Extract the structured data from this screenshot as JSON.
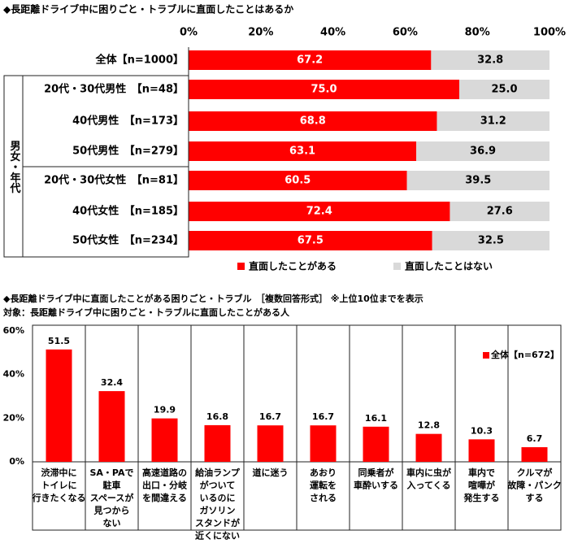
{
  "chart_data": [
    {
      "type": "bar",
      "orientation": "horizontal",
      "stacked": true,
      "title": "◆長距離ドライブ中に困りごと・トラブルに直面したことはあるか",
      "categories": [
        "全体【n=1000】",
        "20代・30代男性　【n=48】",
        "40代男性　【n=173】",
        "50代男性　【n=279】",
        "20代・30代女性　【n=81】",
        "40代女性　【n=185】",
        "50代女性　【n=234】"
      ],
      "group_label": "男女・年代",
      "series": [
        {
          "name": "直面したことがある",
          "color": "#ff0000",
          "values": [
            67.2,
            75.0,
            68.8,
            63.1,
            60.5,
            72.4,
            67.5
          ],
          "value_labels": [
            "67.2",
            "75.0",
            "68.8",
            "63.1",
            "60.5",
            "72.4",
            "67.5"
          ]
        },
        {
          "name": "直面したことはない",
          "color": "#d9d9d9",
          "values": [
            32.8,
            25.0,
            31.2,
            36.9,
            39.5,
            27.6,
            32.5
          ],
          "value_labels": [
            "32.8",
            "25.0",
            "31.2",
            "36.9",
            "39.5",
            "27.6",
            "32.5"
          ]
        }
      ],
      "xlim": [
        0,
        100
      ],
      "xticks": [
        {
          "value": 0,
          "label": "0%"
        },
        {
          "value": 20,
          "label": "20%"
        },
        {
          "value": 40,
          "label": "40%"
        },
        {
          "value": 60,
          "label": "60%"
        },
        {
          "value": 80,
          "label": "80%"
        },
        {
          "value": 100,
          "label": "100%"
        }
      ],
      "grid": false,
      "legend": "bottom"
    },
    {
      "type": "bar",
      "orientation": "vertical",
      "title": "◆長距離ドライブ中に直面したことがある困りごと・トラブル　［複数回答形式］ ※上位10位までを表示",
      "subtitle": "対象：長距離ドライブ中に困りごと・トラブルに直面したことがある人",
      "categories": [
        [
          "渋滞中に",
          "トイレに",
          "行きたくなる"
        ],
        [
          "SA・PAで",
          "駐車",
          "スペースが",
          "見つから",
          "ない"
        ],
        [
          "高速道路の",
          "出口・分岐",
          "を間違える"
        ],
        [
          "給油ランプ",
          "がついて",
          "いるのに",
          "ガソリン",
          "スタンドが",
          "近くにない"
        ],
        [
          "道に迷う"
        ],
        [
          "あおり",
          "運転を",
          "される"
        ],
        [
          "同乗者が",
          "車酔いする"
        ],
        [
          "車内に虫が",
          "入ってくる"
        ],
        [
          "車内で",
          "喧嘩が",
          "発生する"
        ],
        [
          "クルマが",
          "故障・パンク",
          "する"
        ]
      ],
      "series": [
        {
          "name": "全体【n=672】",
          "color": "#ff0000",
          "values": [
            51.5,
            32.4,
            19.9,
            16.8,
            16.7,
            16.7,
            16.1,
            12.8,
            10.3,
            6.7
          ]
        }
      ],
      "ylim": [
        0,
        60
      ],
      "yticks": [
        {
          "value": 0,
          "label": "0%"
        },
        {
          "value": 20,
          "label": "20%"
        },
        {
          "value": 40,
          "label": "40%"
        },
        {
          "value": 60,
          "label": "60%"
        }
      ],
      "grid": false,
      "legend": "top-right"
    }
  ]
}
